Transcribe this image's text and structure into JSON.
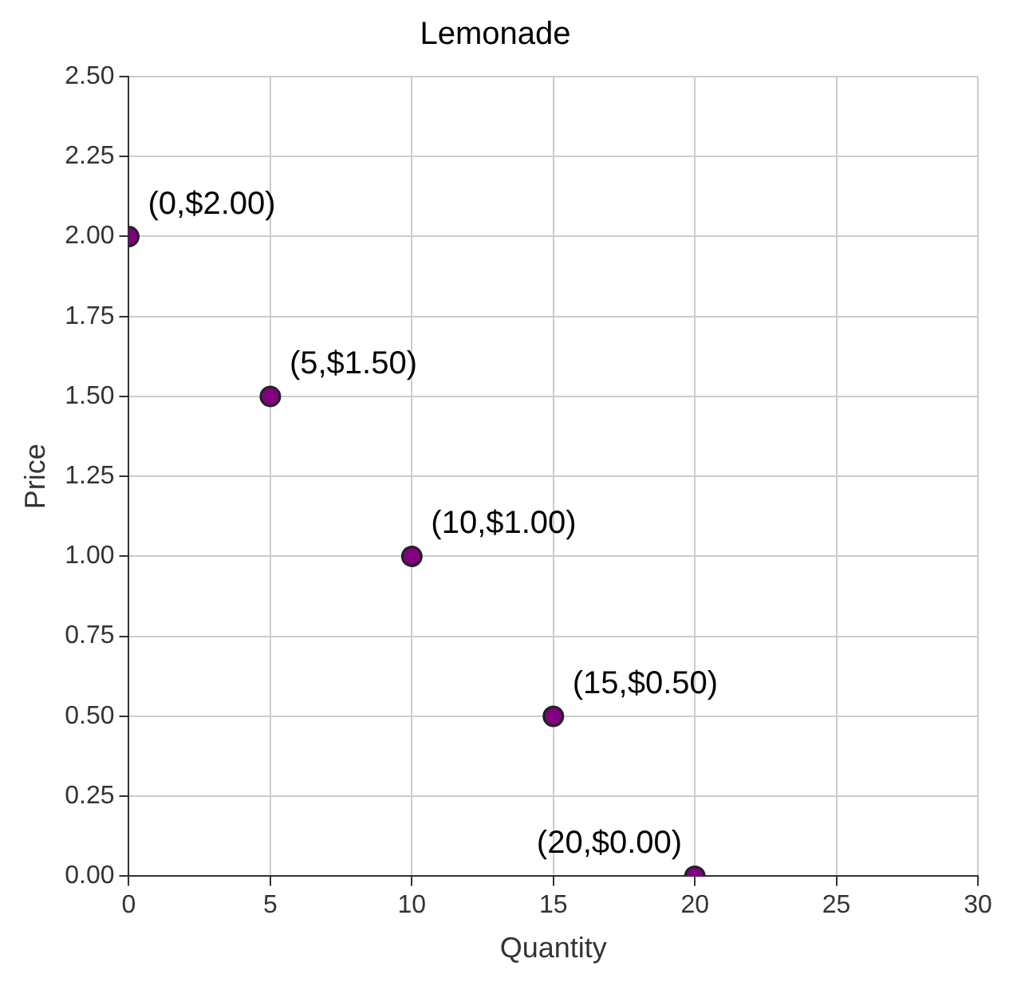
{
  "chart_data": {
    "type": "scatter",
    "title": "Lemonade",
    "xlabel": "Quantity",
    "ylabel": "Price",
    "x": [
      0,
      5,
      10,
      15,
      20
    ],
    "series": [
      {
        "color": "#800080",
        "values": [
          2.0,
          1.5,
          1.0,
          0.5,
          0.0
        ]
      }
    ],
    "xlim": [
      0,
      30
    ],
    "xticks": [
      0,
      5,
      10,
      15,
      20,
      25,
      30
    ],
    "ylim": [
      0,
      2.5
    ],
    "yticks": [
      {
        "value": 0,
        "label": "0.00"
      },
      {
        "value": 0.25,
        "label": "0.25"
      },
      {
        "value": 0.5,
        "label": "0.50"
      },
      {
        "value": 0.75,
        "label": "0.75"
      },
      {
        "value": 1,
        "label": "1.00"
      },
      {
        "value": 1.25,
        "label": "1.25"
      },
      {
        "value": 1.5,
        "label": "1.50"
      },
      {
        "value": 1.75,
        "label": "1.75"
      },
      {
        "value": 2,
        "label": "2.00"
      },
      {
        "value": 2.25,
        "label": "2.25"
      },
      {
        "value": 2.5,
        "label": "2.50"
      }
    ],
    "grid": true,
    "marker": "circle",
    "annotations": [
      {
        "text": "(0,$2.00)",
        "x": 0,
        "y": 2.0
      },
      {
        "text": "(5,$1.50)",
        "x": 5,
        "y": 1.5
      },
      {
        "text": "(10,$1.00)",
        "x": 10,
        "y": 1.0
      },
      {
        "text": "(15,$0.50)",
        "x": 15,
        "y": 0.5
      },
      {
        "text": "(20,$0.00)",
        "x": 20,
        "y": 0.0
      }
    ]
  }
}
